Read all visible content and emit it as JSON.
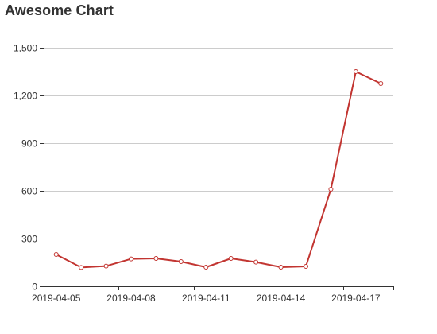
{
  "chart_data": {
    "type": "line",
    "title": "Awesome Chart",
    "xlabel": "",
    "ylabel": "",
    "x": [
      "2019-04-05",
      "2019-04-06",
      "2019-04-07",
      "2019-04-08",
      "2019-04-09",
      "2019-04-10",
      "2019-04-11",
      "2019-04-12",
      "2019-04-13",
      "2019-04-14",
      "2019-04-15",
      "2019-04-16",
      "2019-04-17",
      "2019-04-18"
    ],
    "x_tick_labels": [
      "2019-04-05",
      "2019-04-08",
      "2019-04-11",
      "2019-04-14",
      "2019-04-17"
    ],
    "series": [
      {
        "values": [
          200,
          118,
          127,
          172,
          175,
          155,
          120,
          175,
          152,
          120,
          125,
          610,
          1350,
          1275
        ]
      }
    ],
    "ylim": [
      0,
      1500
    ],
    "y_ticks": [
      0,
      300,
      600,
      900,
      1200,
      1500
    ],
    "y_tick_labels": [
      "0",
      "300",
      "600",
      "900",
      "1,200",
      "1,500"
    ],
    "grid": true,
    "legend": "none",
    "colors": {
      "line": "#c23531",
      "grid": "#cccccc",
      "axis": "#333333",
      "text": "#333333"
    }
  }
}
